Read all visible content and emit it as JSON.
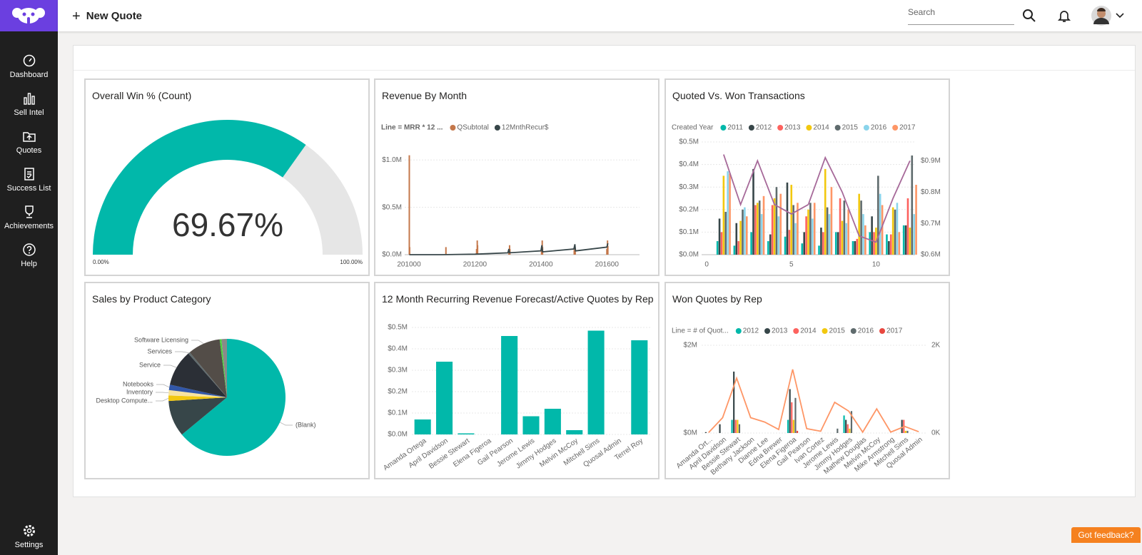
{
  "header": {
    "new_quote": "New Quote",
    "search_placeholder": "Search"
  },
  "sidebar": {
    "items": [
      "Dashboard",
      "Sell Intel",
      "Quotes",
      "Success List",
      "Achievements",
      "Help"
    ],
    "settings": "Settings"
  },
  "feedback": "Got feedback?",
  "tiles": [
    {
      "title": "Overall Win % (Count)",
      "type": "gauge",
      "value": 69.67,
      "value_label": "69.67%",
      "min": {
        "value": 0,
        "label": "0.00%"
      },
      "max": {
        "value": 100,
        "label": "100.00%"
      },
      "color": "#01b8aa",
      "track_color": "#e6e6e6"
    },
    {
      "title": "Revenue By Month",
      "type": "bar-line",
      "legend_title": "Line = MRR * 12 ...",
      "xlim": [
        200987,
        201699
      ],
      "xticks": [
        201000,
        201200,
        201400,
        201600
      ],
      "ylim": [
        0,
        1100000
      ],
      "yticks": [
        {
          "value": 0,
          "label": "$0.0M"
        },
        {
          "value": 500000,
          "label": "$0.5M"
        },
        {
          "value": 1000000,
          "label": "$1.0M"
        }
      ],
      "series": [
        {
          "name": "QSubtotal",
          "color": "#c4774a",
          "mark": "bar",
          "x": [
            201001,
            201002,
            201112,
            201205,
            201207,
            201208,
            201303,
            201305,
            201306,
            201402,
            201404,
            201405,
            201501,
            201503,
            201504,
            201600,
            201602,
            201603
          ],
          "values": [
            1050000,
            80000,
            80000,
            60000,
            150000,
            100000,
            40000,
            100000,
            60000,
            60000,
            150000,
            80000,
            50000,
            100000,
            70000,
            60000,
            150000,
            90000
          ]
        },
        {
          "name": "12MnthRecur$",
          "color": "#374649",
          "mark": "line",
          "x": [
            201001,
            201100,
            201200,
            201300,
            201303,
            201305,
            201400,
            201403,
            201405,
            201500,
            201503,
            201505,
            201600,
            201603
          ],
          "values": [
            0,
            0,
            5000,
            20000,
            60000,
            20000,
            40000,
            100000,
            30000,
            60000,
            110000,
            40000,
            80000,
            120000
          ]
        }
      ]
    },
    {
      "title": "Quoted Vs. Won Transactions",
      "type": "bar-line",
      "legend_title": "Created Year",
      "xlim": [
        -0.3,
        12.3
      ],
      "xticks": [
        0,
        5,
        10
      ],
      "ylim": [
        0,
        500000
      ],
      "yticks": [
        {
          "value": 0,
          "label": "$0.0M"
        },
        {
          "value": 100000,
          "label": "$0.1M"
        },
        {
          "value": 200000,
          "label": "$0.2M"
        },
        {
          "value": 300000,
          "label": "$0.3M"
        },
        {
          "value": 400000,
          "label": "$0.4M"
        },
        {
          "value": 500000,
          "label": "$0.5M"
        }
      ],
      "y2lim": [
        600000,
        960000
      ],
      "y2ticks": [
        {
          "value": 600000,
          "label": "$0.6M"
        },
        {
          "value": 700000,
          "label": "$0.7M"
        },
        {
          "value": 800000,
          "label": "$0.8M"
        },
        {
          "value": 900000,
          "label": "$0.9M"
        }
      ],
      "x": [
        1,
        2,
        3,
        4,
        5,
        6,
        7,
        8,
        9,
        10,
        11,
        12
      ],
      "series": [
        {
          "name": "2011",
          "color": "#01b8aa",
          "mark": "bar",
          "values": [
            60000,
            40000,
            100000,
            60000,
            80000,
            50000,
            40000,
            100000,
            60000,
            100000,
            90000,
            130000
          ]
        },
        {
          "name": "2012",
          "color": "#374649",
          "mark": "bar",
          "values": [
            160000,
            140000,
            380000,
            90000,
            320000,
            100000,
            120000,
            100000,
            60000,
            170000,
            60000,
            130000
          ]
        },
        {
          "name": "2013",
          "color": "#fd625e",
          "mark": "bar",
          "values": [
            100000,
            60000,
            220000,
            220000,
            110000,
            170000,
            100000,
            250000,
            70000,
            100000,
            90000,
            250000
          ]
        },
        {
          "name": "2014",
          "color": "#f2c80f",
          "mark": "bar",
          "values": [
            350000,
            150000,
            230000,
            250000,
            310000,
            200000,
            380000,
            150000,
            270000,
            120000,
            210000,
            120000
          ]
        },
        {
          "name": "2015",
          "color": "#5f6b6d",
          "mark": "bar",
          "values": [
            190000,
            200000,
            240000,
            300000,
            220000,
            230000,
            210000,
            240000,
            240000,
            350000,
            200000,
            440000
          ]
        },
        {
          "name": "2016",
          "color": "#8ad4eb",
          "mark": "bar",
          "values": [
            370000,
            210000,
            180000,
            170000,
            140000,
            160000,
            180000,
            140000,
            180000,
            270000,
            230000,
            180000
          ]
        },
        {
          "name": "2017",
          "color": "#fe9666",
          "mark": "bar",
          "values": [
            360000,
            170000,
            260000,
            270000,
            230000,
            230000,
            300000,
            200000,
            130000,
            220000,
            100000,
            310000
          ]
        },
        {
          "color": "#a66999",
          "mark": "line",
          "axis": "y2",
          "values": [
            920000,
            760000,
            900000,
            760000,
            730000,
            760000,
            910000,
            800000,
            660000,
            640000,
            780000,
            900000
          ]
        }
      ]
    },
    {
      "title": "Sales by Product Category",
      "type": "pie",
      "categories": [
        "(Blank)",
        null,
        "Desktop Compute...",
        "Inventory",
        "Notebooks",
        "Service",
        "Services",
        "Software Licensing",
        null,
        null
      ],
      "values": [
        64,
        10,
        1.5,
        1.5,
        1.5,
        10,
        0.5,
        9,
        0.5,
        1.5
      ],
      "colors": [
        "#01b8aa",
        "#374649",
        "#f2c80f",
        "#f6e3a1",
        "#3257a8",
        "#2b2f36",
        "#5f6b6d",
        "#534d48",
        "#4ad43b",
        "#8a8a8a"
      ]
    },
    {
      "title": "12 Month Recurring Revenue Forecast/Active Quotes by Rep",
      "type": "bar",
      "color": "#01b8aa",
      "categories": [
        "Amanda Ortega",
        "April Davidson",
        "Bessie Stewart",
        "Elena Figeroa",
        "Gail Pearson",
        "Jerome Lewis",
        "Jimmy Hodges",
        "Melvin McCoy",
        "Mitchell Sims",
        "Quosal Admin",
        "Terrel Roy"
      ],
      "values": [
        70000,
        340000,
        5000,
        0,
        460000,
        85000,
        120000,
        20000,
        485000,
        0,
        440000
      ],
      "ylim": [
        0,
        500000
      ],
      "yticks": [
        {
          "value": 0,
          "label": "$0.0M"
        },
        {
          "value": 100000,
          "label": "$0.1M"
        },
        {
          "value": 200000,
          "label": "$0.2M"
        },
        {
          "value": 300000,
          "label": "$0.3M"
        },
        {
          "value": 400000,
          "label": "$0.4M"
        },
        {
          "value": 500000,
          "label": "$0.5M"
        }
      ]
    },
    {
      "title": "Won Quotes by Rep",
      "type": "bar-line-cat",
      "legend_title": "Line = # of Quot...",
      "categories": [
        "Amanda Ort...",
        "April Davidson",
        "Bessie Stewart",
        "Bethany Jackson",
        "Dianne Lee",
        "Edna Brewer",
        "Elena Figeroa",
        "Gail Pearson",
        "Ivan Cortez",
        "Jerome Lewis",
        "Jimmy Hodges",
        "Mathew Douglas",
        "Melvin McCoy",
        "Mike Armstrong",
        "Mitchell Sims",
        "Quosal Admin"
      ],
      "ylim": [
        0,
        2000000
      ],
      "yticks": [
        {
          "value": 0,
          "label": "$0M"
        },
        {
          "value": 2000000,
          "label": "$2M"
        }
      ],
      "y2lim": [
        0,
        2000
      ],
      "y2ticks": [
        {
          "value": 0,
          "label": "0K"
        },
        {
          "value": 2000,
          "label": "2K"
        }
      ],
      "series": [
        {
          "name": "2012",
          "color": "#01b8aa",
          "mark": "bar",
          "values": [
            0,
            0,
            300000,
            0,
            0,
            0,
            300000,
            0,
            0,
            0,
            400000,
            0,
            0,
            0,
            0,
            0
          ]
        },
        {
          "name": "2013",
          "color": "#374649",
          "mark": "bar",
          "values": [
            20000,
            200000,
            1400000,
            0,
            0,
            0,
            1000000,
            0,
            0,
            0,
            300000,
            0,
            0,
            0,
            300000,
            0
          ]
        },
        {
          "name": "2014",
          "color": "#fd625e",
          "mark": "bar",
          "values": [
            0,
            0,
            300000,
            0,
            0,
            0,
            700000,
            0,
            0,
            0,
            200000,
            0,
            0,
            0,
            300000,
            0
          ]
        },
        {
          "name": "2015",
          "color": "#f2c80f",
          "mark": "bar",
          "values": [
            0,
            0,
            300000,
            0,
            0,
            0,
            300000,
            0,
            0,
            0,
            100000,
            0,
            0,
            0,
            50000,
            0
          ]
        },
        {
          "name": "2016",
          "color": "#5f6b6d",
          "mark": "bar",
          "values": [
            0,
            0,
            200000,
            0,
            0,
            0,
            800000,
            0,
            0,
            100000,
            500000,
            0,
            0,
            0,
            50000,
            0
          ]
        },
        {
          "name": "2017",
          "color": "#e8473f",
          "mark": "bar",
          "values": [
            0,
            0,
            0,
            0,
            0,
            0,
            50000,
            0,
            0,
            0,
            0,
            0,
            0,
            0,
            0,
            0
          ]
        },
        {
          "color": "#fe9666",
          "mark": "line",
          "axis": "y2",
          "values": [
            10,
            350,
            1250,
            350,
            250,
            80,
            1450,
            100,
            40,
            700,
            500,
            20,
            550,
            20,
            150,
            30
          ]
        }
      ]
    }
  ]
}
